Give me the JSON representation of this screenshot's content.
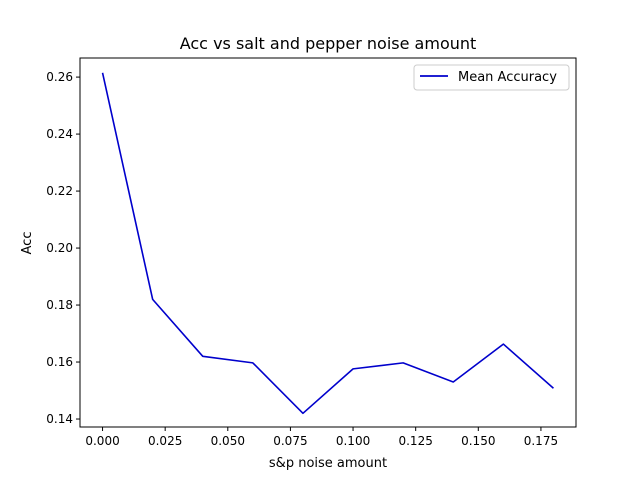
{
  "chart_data": {
    "type": "line",
    "title": "Acc vs salt and pepper noise amount",
    "xlabel": "s&p noise amount",
    "ylabel": "Acc",
    "xlim": [
      -0.009,
      0.189
    ],
    "ylim": [
      0.1372,
      0.2667
    ],
    "x_ticks": [
      0.0,
      0.025,
      0.05,
      0.075,
      0.1,
      0.125,
      0.15,
      0.175
    ],
    "x_tick_labels": [
      "0.000",
      "0.025",
      "0.050",
      "0.075",
      "0.100",
      "0.125",
      "0.150",
      "0.175"
    ],
    "y_ticks": [
      0.14,
      0.16,
      0.18,
      0.2,
      0.22,
      0.24,
      0.26
    ],
    "y_tick_labels": [
      "0.14",
      "0.16",
      "0.18",
      "0.20",
      "0.22",
      "0.24",
      "0.26"
    ],
    "grid": false,
    "legend_position": "top-right",
    "series": [
      {
        "name": "Mean Accuracy",
        "color": "#0000cc",
        "x": [
          0.0,
          0.02,
          0.04,
          0.06,
          0.08,
          0.1,
          0.12,
          0.14,
          0.16,
          0.18
        ],
        "y": [
          0.2615,
          0.182,
          0.162,
          0.1597,
          0.142,
          0.1576,
          0.1597,
          0.153,
          0.1663,
          0.1508
        ]
      }
    ]
  }
}
